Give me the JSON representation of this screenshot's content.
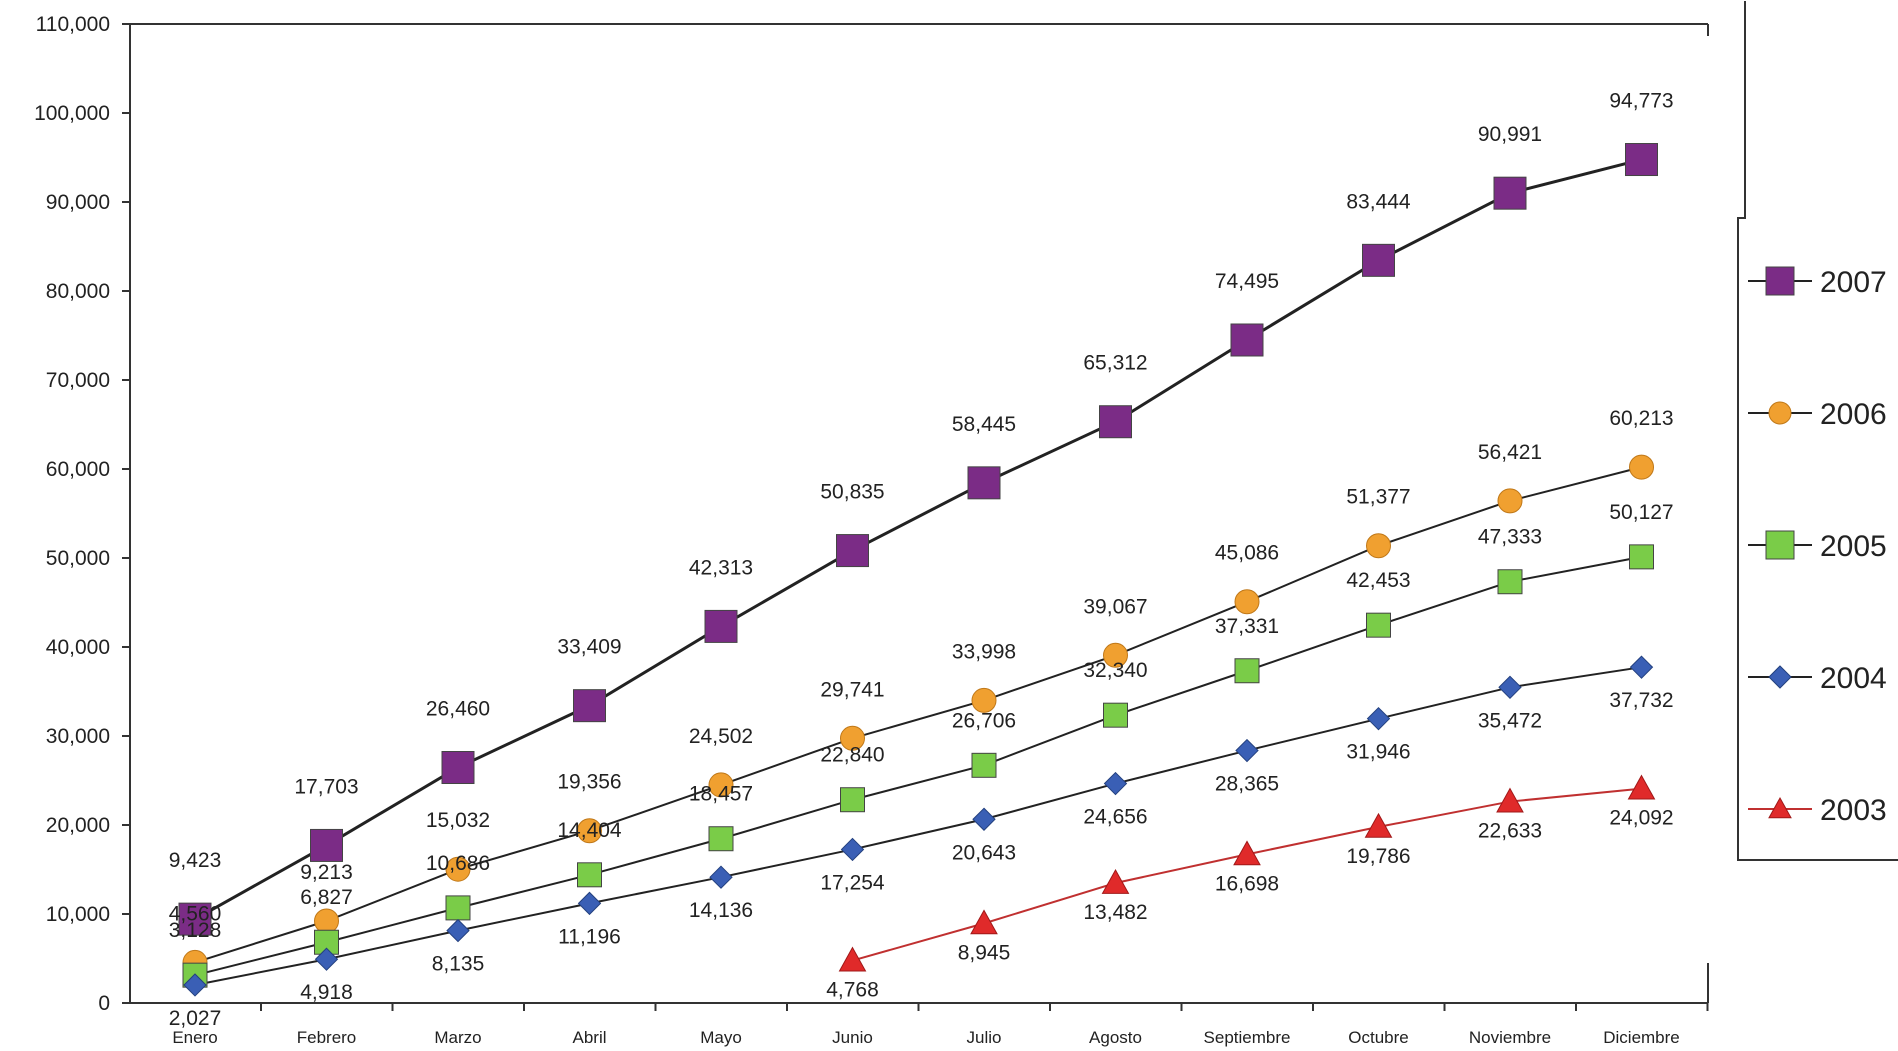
{
  "chart_data": {
    "type": "line",
    "categories": [
      "Enero",
      "Febrero",
      "Marzo",
      "Abril",
      "Mayo",
      "Junio",
      "Julio",
      "Agosto",
      "Septiembre",
      "Octubre",
      "Noviembre",
      "Diciembre"
    ],
    "ylim": [
      0,
      110000
    ],
    "yticks": [
      0,
      10000,
      20000,
      30000,
      40000,
      50000,
      60000,
      70000,
      80000,
      90000,
      100000,
      110000
    ],
    "ytick_labels": [
      "0",
      "10,000",
      "20,000",
      "30,000",
      "40,000",
      "50,000",
      "60,000",
      "70,000",
      "80,000",
      "90,000",
      "100,000",
      "110,000"
    ],
    "legend_position": "right",
    "series": [
      {
        "name": "2007",
        "color": "#7b2c86",
        "line_color": "#222222",
        "marker": "square",
        "values": [
          9423,
          17703,
          26460,
          33409,
          42313,
          50835,
          58445,
          65312,
          74495,
          83444,
          90991,
          94773
        ],
        "labels": [
          "9,423",
          "17,703",
          "26,460",
          "33,409",
          "42,313",
          "50,835",
          "58,445",
          "65,312",
          "74,495",
          "83,444",
          "90,991",
          "94,773"
        ]
      },
      {
        "name": "2006",
        "color": "#f0a030",
        "line_color": "#222222",
        "marker": "circle",
        "values": [
          4560,
          9213,
          15032,
          19356,
          24502,
          29741,
          33998,
          39067,
          45086,
          51377,
          56421,
          60213
        ],
        "labels": [
          "4,560",
          "9,213",
          "15,032",
          "19,356",
          "24,502",
          "29,741",
          "33,998",
          "39,067",
          "45,086",
          "51,377",
          "56,421",
          "60,213"
        ]
      },
      {
        "name": "2005",
        "color": "#7acc48",
        "line_color": "#222222",
        "marker": "square",
        "values": [
          3128,
          6827,
          10686,
          14404,
          18457,
          22840,
          26706,
          32340,
          37331,
          42453,
          47333,
          50127
        ],
        "labels": [
          "3,128",
          "6,827",
          "10,686",
          "14,404",
          "18,457",
          "22,840",
          "26,706",
          "32,340",
          "37,331",
          "42,453",
          "47,333",
          "50,127"
        ]
      },
      {
        "name": "2004",
        "color": "#3a5fb5",
        "line_color": "#222222",
        "marker": "diamond",
        "values": [
          2027,
          4918,
          8135,
          11196,
          14136,
          17254,
          20643,
          24656,
          28365,
          31946,
          35472,
          37732
        ],
        "labels": [
          "2,027",
          "4,918",
          "8,135",
          "11,196",
          "14,136",
          "17,254",
          "20,643",
          "24,656",
          "28,365",
          "31,946",
          "35,472",
          "37,732"
        ]
      },
      {
        "name": "2003",
        "color": "#e02a2a",
        "line_color": "#c03030",
        "marker": "triangle",
        "values": [
          null,
          null,
          null,
          null,
          null,
          4768,
          8945,
          13482,
          16698,
          19786,
          22633,
          24092
        ],
        "labels": [
          null,
          null,
          null,
          null,
          null,
          "4,768",
          "8,945",
          "13,482",
          "16,698",
          "19,786",
          "22,633",
          "24,092"
        ]
      }
    ]
  }
}
